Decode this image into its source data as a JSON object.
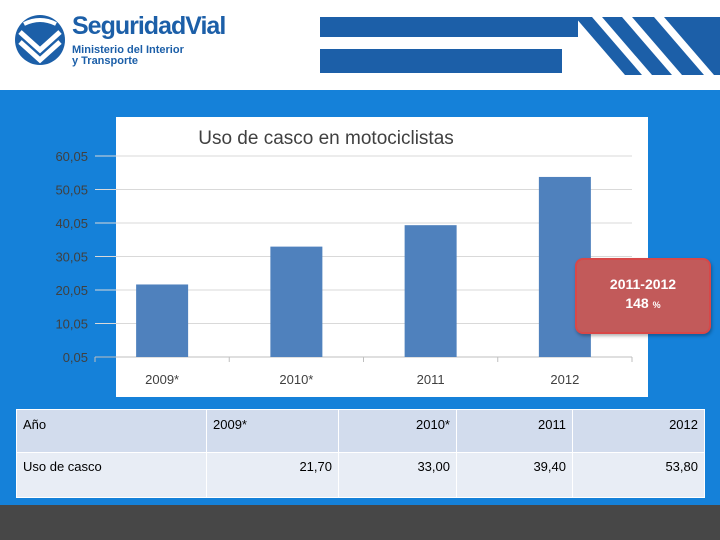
{
  "brand": {
    "name": "SeguridadVial",
    "subtitle_line1": "Ministerio del Interior",
    "subtitle_line2": "y Transporte",
    "color": "#1c5fa8"
  },
  "callout": {
    "years": "2011-2012",
    "value": "148",
    "unit": "%"
  },
  "table": {
    "header_label": "Año",
    "row_label": "Uso de casco",
    "years": [
      "2009*",
      "2010*",
      "2011",
      "2012"
    ],
    "values": [
      "21,70",
      "33,00",
      "39,40",
      "53,80"
    ]
  },
  "chart_data": {
    "type": "bar",
    "title": "Uso de casco en motociclistas",
    "categories": [
      "2009*",
      "2010*",
      "2011",
      "2012"
    ],
    "values": [
      21.7,
      33.0,
      39.4,
      53.8
    ],
    "yticks": [
      "60,05",
      "50,05",
      "40,05",
      "30,05",
      "20,05",
      "10,05",
      "0,05"
    ],
    "ylim": [
      0.05,
      60.05
    ],
    "xlabel": "",
    "ylabel": "",
    "grid": true,
    "bar_color": "#4f81bd"
  }
}
